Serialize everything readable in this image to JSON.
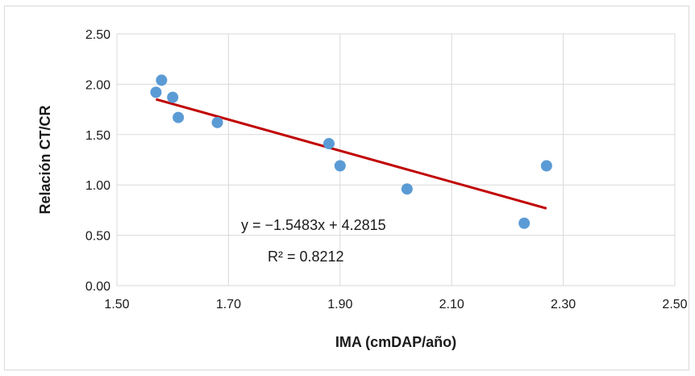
{
  "chart_data": {
    "type": "scatter",
    "title": "",
    "xlabel": "IMA (cmDAP/año)",
    "ylabel": "Relación CT/CR",
    "xlim": [
      1.5,
      2.5
    ],
    "ylim": [
      0.0,
      2.5
    ],
    "xticks": [
      "1.50",
      "1.70",
      "1.90",
      "2.10",
      "2.30",
      "2.50"
    ],
    "yticks": [
      "0.00",
      "0.50",
      "1.00",
      "1.50",
      "2.00",
      "2.50"
    ],
    "grid": "vertical and horizontal major gridlines",
    "series": [
      {
        "points": [
          {
            "x": 1.57,
            "y": 1.92
          },
          {
            "x": 1.58,
            "y": 2.04
          },
          {
            "x": 1.6,
            "y": 1.87
          },
          {
            "x": 1.61,
            "y": 1.67
          },
          {
            "x": 1.68,
            "y": 1.62
          },
          {
            "x": 1.88,
            "y": 1.41
          },
          {
            "x": 1.9,
            "y": 1.19
          },
          {
            "x": 2.02,
            "y": 0.96
          },
          {
            "x": 2.23,
            "y": 0.62
          },
          {
            "x": 2.27,
            "y": 1.19
          }
        ]
      }
    ],
    "trendline": {
      "type": "linear",
      "slope": -1.5483,
      "intercept": 4.2815,
      "x_range": [
        1.57,
        2.27
      ],
      "equation_label": "y = −1.5483x + 4.2815",
      "r2_label": "R² = 0.8212"
    },
    "colors": {
      "points": "#5b9bd5",
      "trendline": "#c00000",
      "grid": "#d9d9d9"
    }
  }
}
